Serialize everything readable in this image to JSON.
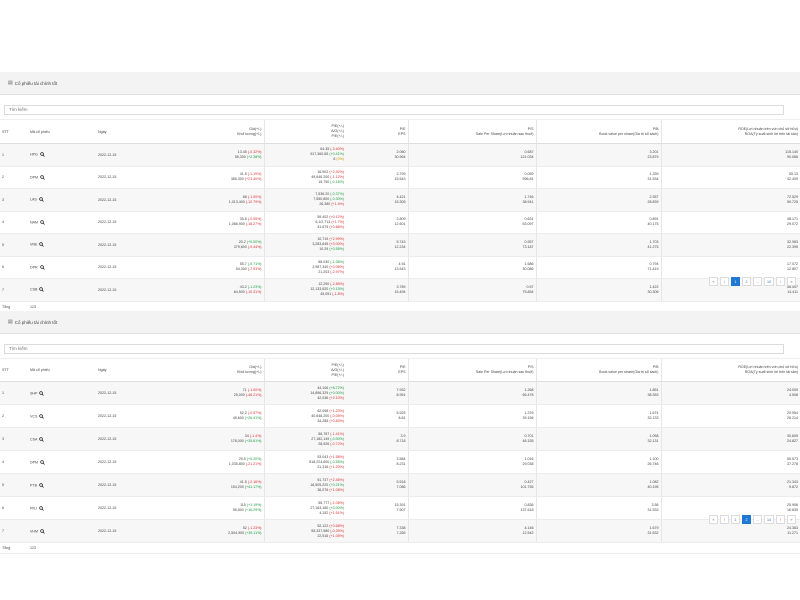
{
  "panel_title": "Cổ phiếu tài chính tốt",
  "search_placeholder": "Tìm kiếm",
  "headers": {
    "stt": "STT",
    "code": "Mã cổ phiếu",
    "date": "Ngày",
    "price_l1": "Giá(+/-)",
    "price_l2": "Khối lượng(+/-)",
    "roe_l1": "P/E(+/-)",
    "roe_l2": "A/G(+/-)",
    "roe_l3": "P/E(+/-)",
    "pe_l1": "P/E",
    "pe_l2": "EPS",
    "ps_l1": "P/S",
    "ps_l2": "Sale Per Share(Lợi nhuận sau thuế)",
    "pb_l1": "P/B",
    "pb_l2": "Book value per share(Giá trị sổ sách)",
    "roe2_l1": "ROE(Lợi nhuận trên vốn chủ sở hữu)",
    "roe2_l2": "ROA(Tỷ suất sinh lời trên tài sản)"
  },
  "total_label": "Tổng",
  "total_value": "123",
  "pager": {
    "first": "«",
    "prev": "‹",
    "next": "›",
    "last": "»",
    "dots": "...",
    "p1": {
      "pages": [
        "1",
        "2"
      ],
      "last_page": "10",
      "active": "1"
    },
    "p2": {
      "pages": [
        "1",
        "2"
      ],
      "last_page": "14",
      "active": "2"
    }
  },
  "table1": [
    {
      "stt": "1",
      "code": "HPG",
      "date": "2022-12-15",
      "p1": "13.45",
      "p1c": "(-0.32%)",
      "p1t": "down",
      "p2": "55,300",
      "p2c": "(+2.38%)",
      "p2t": "up",
      "r1": "64.35",
      "r1c": "(-3.40%)",
      "r1t": "down",
      "r2": "517,360.65",
      "r2c": "(+0.41%)",
      "r2t": "up",
      "r3": "8",
      "r3c": "(0%)",
      "r3t": "flat",
      "pe": "2.060",
      "eps": "30.964",
      "ps": "0.687",
      "ps2": "121.034",
      "pb": "3.201",
      "pb2": "23.879",
      "roe": "115.140",
      "roa": "90.066"
    },
    {
      "stt": "2",
      "code": "DPM",
      "date": "2022-12-15",
      "p1": "41.5",
      "p1c": "(-1.19%)",
      "p1t": "down",
      "p2": "385,300",
      "p2c": "(+21.40%)",
      "p2t": "down",
      "r1": "16.902",
      "r1c": "(+2.92%)",
      "r1t": "down",
      "r2": "49,646.200",
      "r2c": "(-1.12%)",
      "r2t": "down",
      "r3": "15.750",
      "r3c": "(-0.16%)",
      "r3t": "up",
      "pe": "2.799",
      "eps": "15.543",
      "ps": "0.059",
      "ps2": "596.81",
      "pb": "1.339",
      "pb2": "31.534",
      "roe": "55.13",
      "roa": "42.409"
    },
    {
      "stt": "3",
      "code": "LAS",
      "date": "2022-12-15",
      "p1": "68",
      "p1c": "(-1.00%)",
      "p1t": "down",
      "p2": "1,013,400",
      "p2c": "(-12.79%)",
      "p2t": "down",
      "r1": "7,536.20",
      "r1c": "(-0.37%)",
      "r1t": "up",
      "r2": "7,550,800",
      "r2c": "(-0.30%)",
      "r2t": "up",
      "r3": "26,380",
      "r3c": "(+1.4%)",
      "r3t": "down",
      "pe": "4.421",
      "eps": "15.305",
      "ps": "1.746",
      "ps2": "38.941",
      "pb": "2.357",
      "pb2": "28.839",
      "roe": "72.529",
      "roa": "59.725"
    },
    {
      "stt": "4",
      "code": "NAM",
      "date": "2022-12-15",
      "p1": "35.8",
      "p1c": "(-0.55%)",
      "p1t": "down",
      "p2": "1,066,900",
      "p2c": "(-18.27%)",
      "p2t": "down",
      "r1": "59.402",
      "r1c": "(+0.12%)",
      "r1t": "down",
      "r2": "6,1/2,713",
      "r2c": "(+1.7%)",
      "r2t": "down",
      "r3": "41,679",
      "r3c": "(+0.88%)",
      "r3t": "down",
      "pe": "2.809",
      "eps": "12.601",
      "ps": "0.631",
      "ps2": "53.097",
      "pb": "0.891",
      "pb2": "40.175",
      "roe": "48.171",
      "roa": "29.072"
    },
    {
      "stt": "5",
      "code": "VNE",
      "date": "2022-12-15",
      "p1": "20.2",
      "p1c": "(+0.00%)",
      "p1t": "up",
      "p2": "379,600",
      "p2c": "(-9.44%)",
      "p2t": "down",
      "r1": "10,719",
      "r1c": "(+2.99%)",
      "r1t": "down",
      "r2": "3,283,645",
      "r2c": "(+0.00%)",
      "r2t": "down",
      "r3": "10.29",
      "r3c": "(+0.55%)",
      "r3t": "up",
      "pe": "5.743",
      "eps": "12.234",
      "ps": "0.957",
      "ps2": "73.187",
      "pb": "1.703",
      "pb2": "41.275",
      "roe": "32.983",
      "roa": "22.395"
    },
    {
      "stt": "6",
      "code": "DPR",
      "date": "2022-12-15",
      "p1": "55.7",
      "p1c": "(-0.71%)",
      "p1t": "up",
      "p2": "54,300",
      "p2c": "(-7.93%)",
      "p2t": "down",
      "r1": "68.030",
      "r1c": "(-1.36%)",
      "r1t": "up",
      "r2": "2,987,340",
      "r2c": "(+0.06%)",
      "r2t": "down",
      "r3": "21,203",
      "r3c": "(-2.97%)",
      "r3t": "down",
      "pe": "4.91",
      "eps": "13.543",
      "ps": "1.686",
      "ps2": "30.086",
      "pb": "0.794",
      "pb2": "71.419",
      "roe": "17.072",
      "roa": "12.807"
    },
    {
      "stt": "7",
      "code": "CSB",
      "date": "2022-12-15",
      "p1": "43.2",
      "p1c": "(-1.23%)",
      "p1t": "up",
      "p2": "64,500",
      "p2c": "(-10.31%)",
      "p2t": "down",
      "r1": "12,290",
      "r1c": "(-2.85%)",
      "r1t": "down",
      "r2": "12,133,620",
      "r2c": "(+0.15%)",
      "r2t": "up",
      "r3": "45,051",
      "r3c": "(-1.8%)",
      "r3t": "down",
      "pe": "3.789",
      "eps": "15.494",
      "ps": "0.57",
      "ps2": "75.854",
      "pb": "1.422",
      "pb2": "30.306",
      "roe": "58.497",
      "roa": "14.411"
    }
  ],
  "table2": [
    {
      "stt": "1",
      "code": "SHP",
      "date": "2022-12-15",
      "p1": "71",
      "p1c": "(-1.00%)",
      "p1t": "down",
      "p2": "25,000",
      "p2c": "(-46.21%)",
      "p2t": "down",
      "r1": "44,106",
      "r1c": "(+8.72%)",
      "r1t": "up",
      "r2": "14,896,329",
      "r2c": "(+0.00%)",
      "r2t": "up",
      "r3": "42,036",
      "r3c": "(+2.10%)",
      "r3t": "down",
      "pe": "7.932",
      "eps": "8.951",
      "ps": "1.268",
      "ps2": "65.478",
      "pb": "1.851",
      "pb2": "38.353",
      "roe": "24.009",
      "roa": "4.508"
    },
    {
      "stt": "2",
      "code": "VCS",
      "date": "2022-12-15",
      "p1": "52.2",
      "p1c": "(-0.57%)",
      "p1t": "down",
      "p2": "49,600",
      "p2c": "(+26.41%)",
      "p2t": "up",
      "r1": "62,098",
      "r1c": "(+1.23%)",
      "r1t": "down",
      "r2": "40,648,200",
      "r2c": "(-0.05%)",
      "r2t": "down",
      "r3": "34,285",
      "r3c": "(+0.83%)",
      "r3t": "down",
      "pe": "5.925",
      "eps": "8.81",
      "ps": "1.376",
      "ps2": "39.156",
      "pb": "1.674",
      "pb2": "32.133",
      "roe": "20.954",
      "roa": "26.214"
    },
    {
      "stt": "3",
      "code": "CSA",
      "date": "2022-12-15",
      "p1": "34",
      "p1c": "(-1.4%)",
      "p1t": "down",
      "p2": "178,000",
      "p2c": "(+35.61%)",
      "p2t": "up",
      "r1": "56,787",
      "r1c": "(-1.41%)",
      "r1t": "down",
      "r2": "27,182,149",
      "r2c": "(-0.00%)",
      "r2t": "up",
      "r3": "28,926",
      "r3c": "(-0.72%)",
      "r3t": "down",
      "pe": "3.9",
      "eps": "8.718",
      "ps": "0.701",
      "ps2": "48.155",
      "pb": "1.058",
      "pb2": "32.131",
      "roe": "30.605",
      "roa": "24.827"
    },
    {
      "stt": "4",
      "code": "DPM",
      "date": "2022-12-15",
      "p1": "29.5",
      "p1c": "(+0.20%)",
      "p1t": "up",
      "p2": "1,035,800",
      "p2c": "(-21.21%)",
      "p2t": "down",
      "r1": "53,043",
      "r1c": "(+1.58%)",
      "r1t": "down",
      "r2": "518,224,600",
      "r2c": "(-0.55%)",
      "r2t": "up",
      "r3": "21,316",
      "r3c": "(+1.20%)",
      "r3t": "down",
      "pe": "3.584",
      "eps": "8.231",
      "ps": "1.016",
      "ps2": "29.038",
      "pb": "1.100",
      "pb2": "26.746",
      "roe": "55.573",
      "roa": "37.278"
    },
    {
      "stt": "5",
      "code": "PTB",
      "date": "2022-12-15",
      "p1": "41.5",
      "p1c": "(-2.16%)",
      "p1t": "down",
      "p2": "154,200",
      "p2c": "(+41.17%)",
      "p2t": "up",
      "r1": "51,737",
      "r1c": "(+2.45%)",
      "r1t": "down",
      "r2": "18,505,220",
      "r2c": "(+0.21%)",
      "r2t": "up",
      "r3": "36,076",
      "r3c": "(+1.08%)",
      "r3t": "down",
      "pe": "5.518",
      "eps": "7.086",
      "ps": "0.427",
      "ps2": "101.755",
      "pb": "1.082",
      "pb2": "40.195",
      "roe": "21.343",
      "roa": "9.872"
    },
    {
      "stt": "6",
      "code": "PNJ",
      "date": "2022-12-15",
      "p1": "115",
      "p1c": "(+1.19%)",
      "p1t": "up",
      "p2": "55,500",
      "p2c": "(+16.29%)",
      "p2t": "up",
      "r1": "56,777",
      "r1c": "(-1.06%)",
      "r1t": "down",
      "r2": "27,163,180",
      "r2c": "(+0.00%)",
      "r2t": "up",
      "r3": "4,152",
      "r3c": "(+1.51%)",
      "r3t": "down",
      "pe": "15.391",
      "eps": "7.607",
      "ps": "0.836",
      "ps2": "137.618",
      "pb": "3.56",
      "pb2": "31.533",
      "roe": "25.906",
      "roa": "16.839"
    },
    {
      "stt": "7",
      "code": "VHM",
      "date": "2022-12-15",
      "p1": "52",
      "p1c": "(-1.23%)",
      "p1t": "down",
      "p2": "2,504,900",
      "p2c": "(+35.11%)",
      "p2t": "up",
      "r1": "52,122",
      "r1c": "(+0.58%)",
      "r1t": "down",
      "r2": "55,337,980",
      "r2c": "(-0.25%)",
      "r2t": "down",
      "r3": "22,516",
      "r3c": "(+1.05%)",
      "r3t": "down",
      "pe": "7.338",
      "eps": "7.265",
      "ps": "4.146",
      "ps2": "12.542",
      "pb": "1.679",
      "pb2": "31.632",
      "roe": "24.363",
      "roa": "11.271"
    }
  ]
}
